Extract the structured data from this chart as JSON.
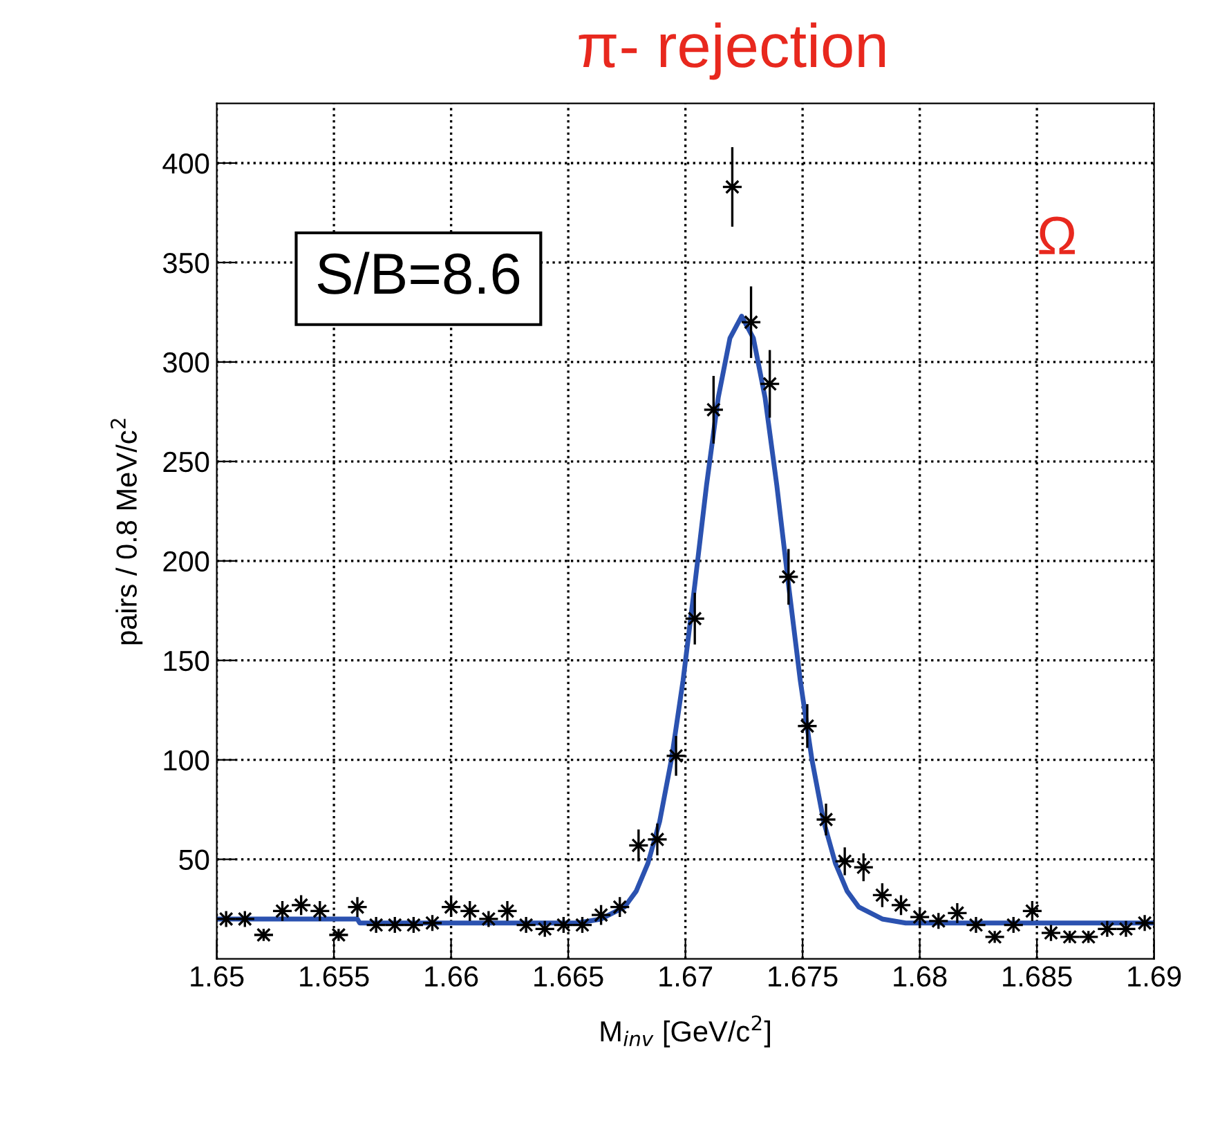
{
  "chart_data": {
    "type": "scatter",
    "title": "π- rejection",
    "xlabel": "M$_{inv}$ [GeV/c$^{2}$]",
    "ylabel": "pairs / 0.8 MeV/c$^{2}$",
    "annotations": [
      "S/B=8.6",
      "Ω"
    ],
    "xlim": [
      1.65,
      1.69
    ],
    "xticks": [
      1.65,
      1.655,
      1.66,
      1.665,
      1.67,
      1.675,
      1.68,
      1.685,
      1.69
    ],
    "ylim": [
      0,
      430
    ],
    "yticks": [
      50,
      100,
      150,
      200,
      250,
      300,
      350,
      400
    ],
    "grid": true,
    "legend": false,
    "series": [
      {
        "color": "#000000",
        "marker": "cross",
        "x": [
          1.6504,
          1.6512,
          1.652,
          1.6528,
          1.6536,
          1.6544,
          1.6552,
          1.656,
          1.6568,
          1.6576,
          1.6584,
          1.6592,
          1.66,
          1.6608,
          1.6616,
          1.6624,
          1.6632,
          1.664,
          1.6648,
          1.6656,
          1.6664,
          1.6672,
          1.668,
          1.6688,
          1.6696,
          1.6704,
          1.6712,
          1.672,
          1.6728,
          1.6736,
          1.6744,
          1.6752,
          1.676,
          1.6768,
          1.6776,
          1.6784,
          1.6792,
          1.68,
          1.6808,
          1.6816,
          1.6824,
          1.6832,
          1.684,
          1.6848,
          1.6856,
          1.6864,
          1.6872,
          1.688,
          1.6888,
          1.6896
        ],
        "values": [
          20,
          20,
          12,
          24,
          27,
          24,
          12,
          26,
          17,
          17,
          17,
          18,
          26,
          24,
          20,
          24,
          17,
          15,
          17,
          17,
          22,
          26,
          57,
          60,
          102,
          171,
          276,
          388,
          320,
          289,
          192,
          117,
          70,
          49,
          46,
          32,
          27,
          21,
          19,
          23,
          17,
          11,
          17,
          24,
          13,
          11,
          11,
          15,
          15,
          18
        ],
        "errors": [
          4,
          4,
          3,
          5,
          5,
          5,
          3,
          5,
          4,
          4,
          4,
          4,
          5,
          5,
          4,
          5,
          4,
          4,
          4,
          4,
          5,
          5,
          8,
          8,
          10,
          13,
          17,
          20,
          18,
          17,
          14,
          11,
          8,
          7,
          7,
          6,
          5,
          5,
          4,
          5,
          4,
          3,
          4,
          5,
          4,
          3,
          3,
          4,
          4,
          4
        ],
        "xerrors": [
          0.0004,
          0.0004,
          0.0004,
          0.0004,
          0.0004,
          0.0004,
          0.0004,
          0.0004,
          0.0004,
          0.0004,
          0.0004,
          0.0004,
          0.0004,
          0.0004,
          0.0004,
          0.0004,
          0.0004,
          0.0004,
          0.0004,
          0.0004,
          0.0004,
          0.0004,
          0.0004,
          0.0004,
          0.0004,
          0.0004,
          0.0004,
          0.0004,
          0.0004,
          0.0004,
          0.0004,
          0.0004,
          0.0004,
          0.0004,
          0.0004,
          0.0004,
          0.0004,
          0.0004,
          0.0004,
          0.0004,
          0.0004,
          0.0004,
          0.0004,
          0.0004,
          0.0004,
          0.0004,
          0.0004,
          0.0004,
          0.0004,
          0.0004
        ]
      },
      {
        "type": "line",
        "color": "#2b52b0",
        "line_style": "solid",
        "x": [
          1.65,
          1.656,
          1.6561,
          1.6654,
          1.6664,
          1.6674,
          1.6679,
          1.6684,
          1.6689,
          1.6694,
          1.6699,
          1.6704,
          1.6709,
          1.6714,
          1.6719,
          1.6724,
          1.6729,
          1.6734,
          1.6739,
          1.6744,
          1.6749,
          1.6754,
          1.6759,
          1.6764,
          1.6769,
          1.6774,
          1.6784,
          1.6794,
          1.69
        ],
        "values": [
          20,
          20,
          18,
          18,
          20,
          26,
          34,
          48,
          69,
          100,
          140,
          188,
          238,
          282,
          312,
          323,
          312,
          282,
          238,
          188,
          140,
          100,
          69,
          48,
          34,
          26,
          20,
          18,
          18
        ]
      }
    ]
  }
}
